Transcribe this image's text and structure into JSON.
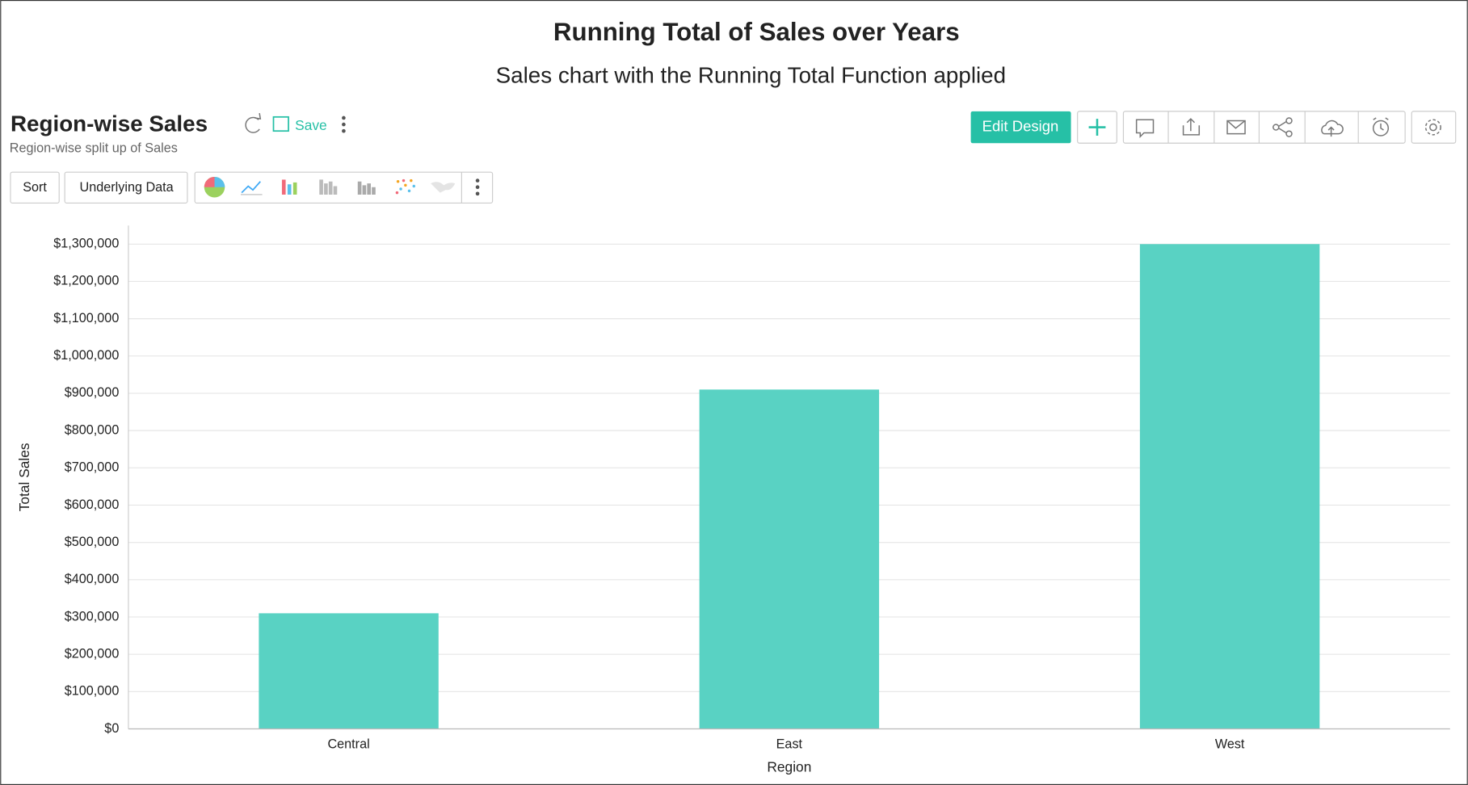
{
  "header": {
    "title": "Running Total of Sales over Years",
    "subtitle": "Sales chart with the Running Total Function applied"
  },
  "toolbar": {
    "report_title": "Region-wise Sales",
    "report_subtitle": "Region-wise split up of Sales",
    "save": "Save",
    "edit_design": "Edit Design",
    "sort": "Sort",
    "underlying_data": "Underlying Data"
  },
  "chart_data": {
    "type": "bar",
    "x_label": "Region",
    "y_label": "Total Sales",
    "categories": [
      "Central",
      "East",
      "West"
    ],
    "values": [
      310000,
      910000,
      1300000
    ],
    "color": "#59d2c3",
    "ylim": [
      0,
      1350000
    ],
    "yticks": [
      {
        "value": 0,
        "label": "$0"
      },
      {
        "value": 100000,
        "label": "$100,000"
      },
      {
        "value": 200000,
        "label": "$200,000"
      },
      {
        "value": 300000,
        "label": "$300,000"
      },
      {
        "value": 400000,
        "label": "$400,000"
      },
      {
        "value": 500000,
        "label": "$500,000"
      },
      {
        "value": 600000,
        "label": "$600,000"
      },
      {
        "value": 700000,
        "label": "$700,000"
      },
      {
        "value": 800000,
        "label": "$800,000"
      },
      {
        "value": 900000,
        "label": "$900,000"
      },
      {
        "value": 1000000,
        "label": "$1,000,000"
      },
      {
        "value": 1100000,
        "label": "$1,100,000"
      },
      {
        "value": 1200000,
        "label": "$1,200,000"
      },
      {
        "value": 1300000,
        "label": "$1,300,000"
      }
    ],
    "grid": true
  }
}
